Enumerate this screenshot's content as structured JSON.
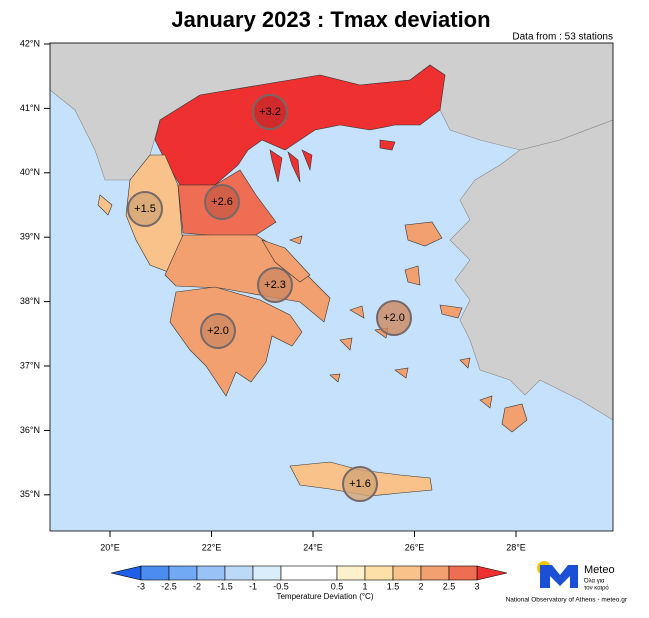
{
  "title": "January 2023 : Tmax deviation",
  "subtitle": "Data from : 53 stations",
  "lat_ticks": [
    {
      "value": 42,
      "label": "42°N"
    },
    {
      "value": 41,
      "label": "41°N"
    },
    {
      "value": 40,
      "label": "40°N"
    },
    {
      "value": 39,
      "label": "39°N"
    },
    {
      "value": 38,
      "label": "38°N"
    },
    {
      "value": 37,
      "label": "37°N"
    },
    {
      "value": 36,
      "label": "36°N"
    },
    {
      "value": 35,
      "label": "35°N"
    }
  ],
  "lon_ticks": [
    {
      "value": 20,
      "label": "20°E"
    },
    {
      "value": 22,
      "label": "22°E"
    },
    {
      "value": 24,
      "label": "24°E"
    },
    {
      "value": 26,
      "label": "26°E"
    },
    {
      "value": 28,
      "label": "28°E"
    }
  ],
  "regions": [
    {
      "value": 3.2,
      "label": "+3.2"
    },
    {
      "value": 1.5,
      "label": "+1.5"
    },
    {
      "value": 2.6,
      "label": "+2.6"
    },
    {
      "value": 2.3,
      "label": "+2.3"
    },
    {
      "value": 2.0,
      "label": "+2.0"
    },
    {
      "value": 2.0,
      "label": "+2.0"
    },
    {
      "value": 1.6,
      "label": "+1.6"
    }
  ],
  "colorbar": {
    "title": "Temperature Deviation (°C)",
    "ticks": [
      -3,
      -2.5,
      -2,
      -1.5,
      -1,
      -0.5,
      0.5,
      1,
      1.5,
      2,
      2.5,
      3
    ],
    "colors": [
      "#1f5fe6",
      "#4a8cf0",
      "#71a9f5",
      "#99c3f7",
      "#bcdaf8",
      "#d9eefa",
      "#ffffff",
      "#fdf1cc",
      "#fde0a8",
      "#f9c28a",
      "#f3a070",
      "#ef6d52",
      "#ee3030"
    ]
  },
  "logo": {
    "name": "Meteo",
    "tagline": [
      "Όλα για",
      "τον καιρό"
    ]
  },
  "footer": "National Observatory of Athens - meteo.gr"
}
